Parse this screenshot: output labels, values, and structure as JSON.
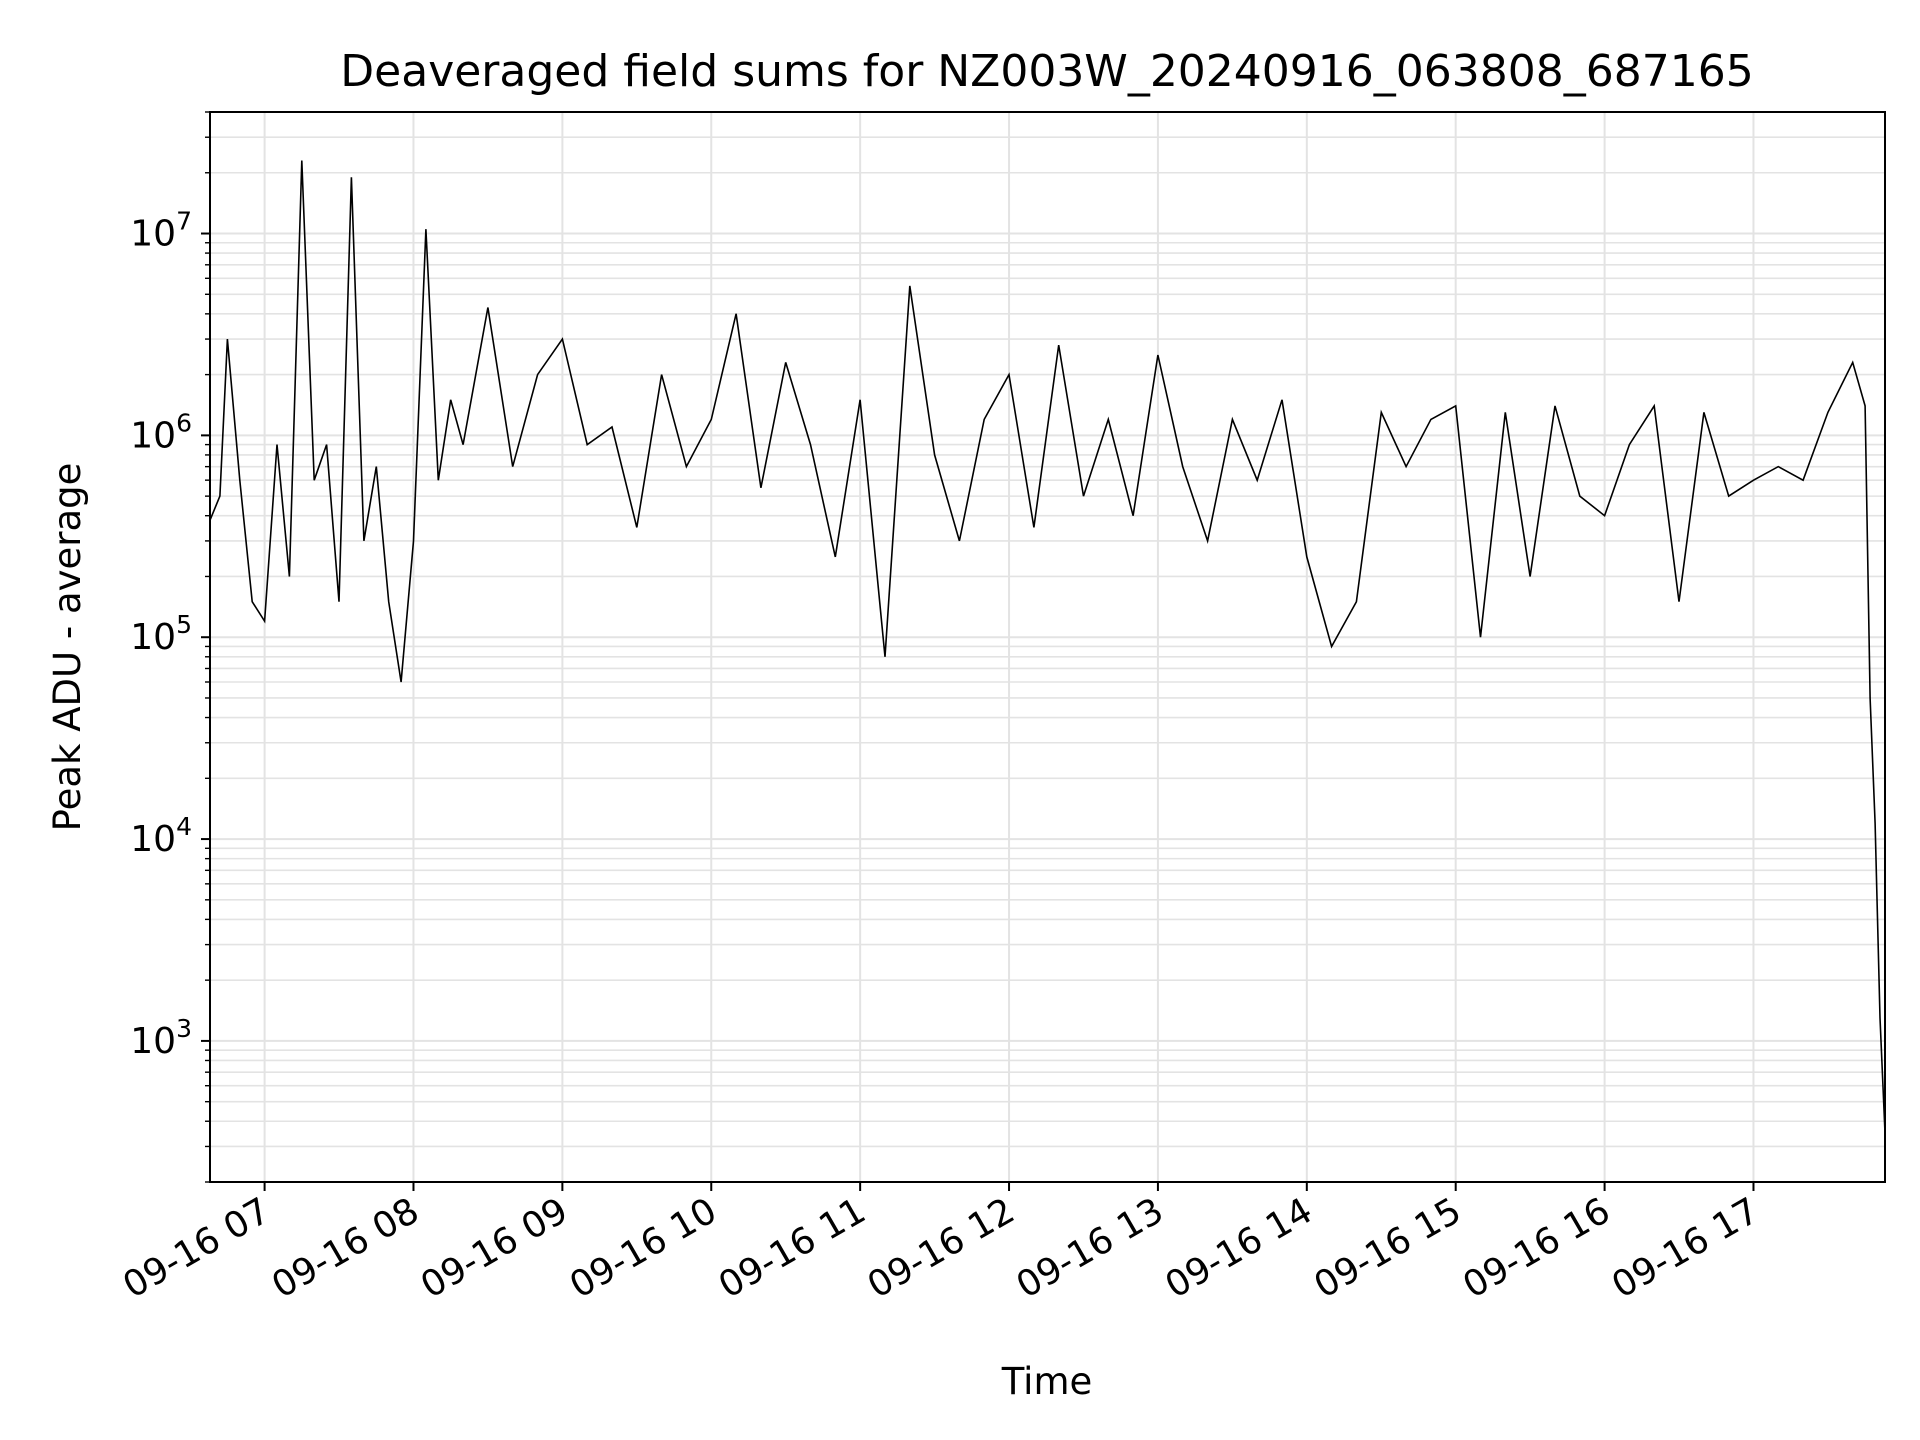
{
  "chart_data": {
    "type": "line",
    "title": "Deaveraged field sums for NZ003W_20240916_063808_687165",
    "xlabel": "Time",
    "ylabel": "Peak ADU - average",
    "xscale": "time",
    "yscale": "log",
    "xlim": [
      "2024-09-16 06:38",
      "2024-09-16 17:53"
    ],
    "ylim": [
      200,
      40000000
    ],
    "grid": true,
    "x_ticks": [
      "09-16 07",
      "09-16 08",
      "09-16 09",
      "09-16 10",
      "09-16 11",
      "09-16 12",
      "09-16 13",
      "09-16 14",
      "09-16 15",
      "09-16 16",
      "09-16 17"
    ],
    "y_ticks": [
      {
        "base": "10",
        "exp": "3",
        "value": 1000
      },
      {
        "base": "10",
        "exp": "4",
        "value": 10000
      },
      {
        "base": "10",
        "exp": "5",
        "value": 100000
      },
      {
        "base": "10",
        "exp": "6",
        "value": 1000000
      },
      {
        "base": "10",
        "exp": "7",
        "value": 10000000
      }
    ],
    "line_color": "#000000",
    "grid_color": "#e3e3e3",
    "series": [
      {
        "x": [
          "09-16 06:38",
          "09-16 06:42",
          "09-16 06:45",
          "09-16 06:50",
          "09-16 06:55",
          "09-16 07:00",
          "09-16 07:05",
          "09-16 07:10",
          "09-16 07:15",
          "09-16 07:20",
          "09-16 07:25",
          "09-16 07:30",
          "09-16 07:35",
          "09-16 07:40",
          "09-16 07:45",
          "09-16 07:50",
          "09-16 07:55",
          "09-16 08:00",
          "09-16 08:05",
          "09-16 08:10",
          "09-16 08:15",
          "09-16 08:20",
          "09-16 08:30",
          "09-16 08:40",
          "09-16 08:50",
          "09-16 09:00",
          "09-16 09:10",
          "09-16 09:20",
          "09-16 09:30",
          "09-16 09:40",
          "09-16 09:50",
          "09-16 10:00",
          "09-16 10:10",
          "09-16 10:20",
          "09-16 10:30",
          "09-16 10:40",
          "09-16 10:50",
          "09-16 11:00",
          "09-16 11:10",
          "09-16 11:20",
          "09-16 11:30",
          "09-16 11:40",
          "09-16 11:50",
          "09-16 12:00",
          "09-16 12:10",
          "09-16 12:20",
          "09-16 12:30",
          "09-16 12:40",
          "09-16 12:50",
          "09-16 13:00",
          "09-16 13:10",
          "09-16 13:20",
          "09-16 13:30",
          "09-16 13:40",
          "09-16 13:50",
          "09-16 14:00",
          "09-16 14:10",
          "09-16 14:20",
          "09-16 14:30",
          "09-16 14:40",
          "09-16 14:50",
          "09-16 15:00",
          "09-16 15:10",
          "09-16 15:20",
          "09-16 15:30",
          "09-16 15:40",
          "09-16 15:50",
          "09-16 16:00",
          "09-16 16:10",
          "09-16 16:20",
          "09-16 16:30",
          "09-16 16:40",
          "09-16 16:50",
          "09-16 17:00",
          "09-16 17:10",
          "09-16 17:20",
          "09-16 17:30",
          "09-16 17:40",
          "09-16 17:45",
          "09-16 17:47",
          "09-16 17:49",
          "09-16 17:51",
          "09-16 17:53"
        ],
        "y": [
          380000,
          500000,
          3000000,
          600000,
          150000,
          120000,
          900000,
          200000,
          23000000,
          600000,
          900000,
          150000,
          19000000,
          300000,
          700000,
          150000,
          60000,
          300000,
          10500000,
          600000,
          1500000,
          900000,
          4300000,
          700000,
          2000000,
          3000000,
          900000,
          1100000,
          350000,
          2000000,
          700000,
          1200000,
          4000000,
          550000,
          2300000,
          900000,
          250000,
          1500000,
          80000,
          5500000,
          800000,
          300000,
          1200000,
          2000000,
          350000,
          2800000,
          500000,
          1200000,
          400000,
          2500000,
          700000,
          300000,
          1200000,
          600000,
          1500000,
          250000,
          90000,
          150000,
          1300000,
          700000,
          1200000,
          1400000,
          100000,
          1300000,
          200000,
          1400000,
          500000,
          400000,
          900000,
          1400000,
          150000,
          1300000,
          500000,
          600000,
          700000,
          600000,
          1300000,
          2300000,
          1400000,
          50000,
          12000,
          1300,
          350
        ]
      }
    ]
  }
}
